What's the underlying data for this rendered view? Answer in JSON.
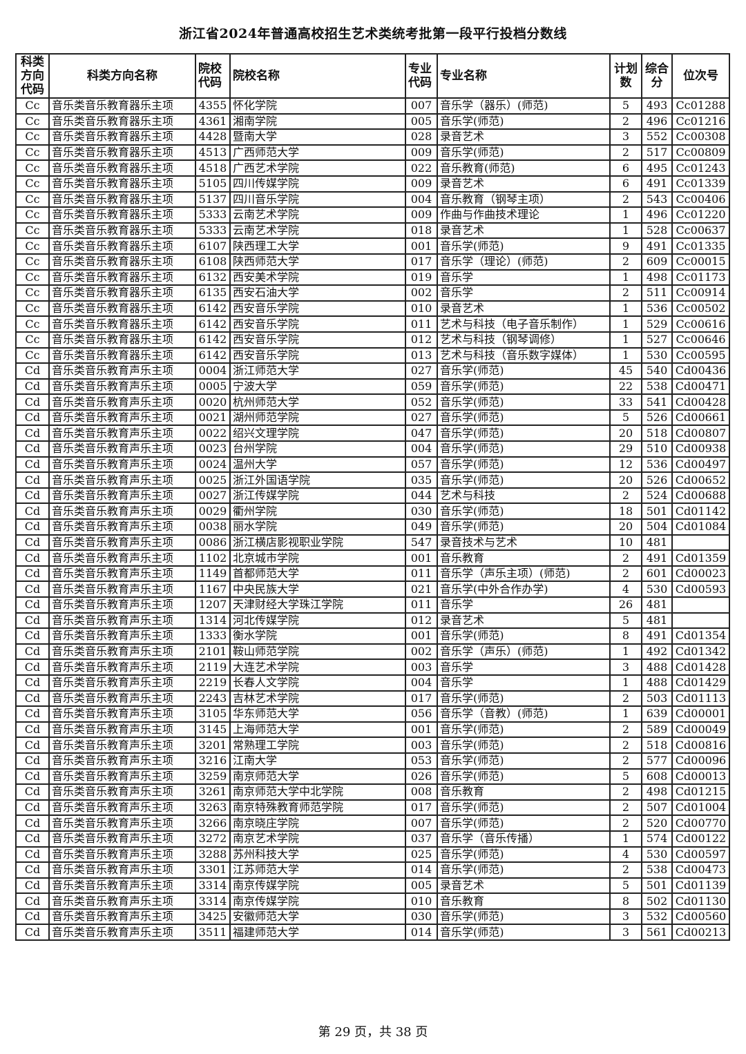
{
  "title": "浙江省2024年普通高校招生艺术类统考批第一段平行投档分数线",
  "headers": [
    "科类方向代码",
    "科类方向名称",
    "院校代码",
    "院校名称",
    "专业代码",
    "专业名称",
    "计划数",
    "综合分",
    "位次号"
  ],
  "rows": [
    [
      "Cc",
      "音乐类音乐教育器乐主项",
      "4355",
      "怀化学院",
      "007",
      "音乐学（器乐）(师范)",
      "5",
      "493",
      "Cc01288"
    ],
    [
      "Cc",
      "音乐类音乐教育器乐主项",
      "4361",
      "湘南学院",
      "005",
      "音乐学(师范)",
      "2",
      "496",
      "Cc01216"
    ],
    [
      "Cc",
      "音乐类音乐教育器乐主项",
      "4428",
      "暨南大学",
      "028",
      "录音艺术",
      "3",
      "552",
      "Cc00308"
    ],
    [
      "Cc",
      "音乐类音乐教育器乐主项",
      "4513",
      "广西师范大学",
      "009",
      "音乐学(师范)",
      "2",
      "517",
      "Cc00809"
    ],
    [
      "Cc",
      "音乐类音乐教育器乐主项",
      "4518",
      "广西艺术学院",
      "022",
      "音乐教育(师范)",
      "6",
      "495",
      "Cc01243"
    ],
    [
      "Cc",
      "音乐类音乐教育器乐主项",
      "5105",
      "四川传媒学院",
      "009",
      "录音艺术",
      "6",
      "491",
      "Cc01339"
    ],
    [
      "Cc",
      "音乐类音乐教育器乐主项",
      "5137",
      "四川音乐学院",
      "004",
      "音乐教育（钢琴主项）",
      "2",
      "543",
      "Cc00406"
    ],
    [
      "Cc",
      "音乐类音乐教育器乐主项",
      "5333",
      "云南艺术学院",
      "009",
      "作曲与作曲技术理论",
      "1",
      "496",
      "Cc01220"
    ],
    [
      "Cc",
      "音乐类音乐教育器乐主项",
      "5333",
      "云南艺术学院",
      "018",
      "录音艺术",
      "1",
      "528",
      "Cc00637"
    ],
    [
      "Cc",
      "音乐类音乐教育器乐主项",
      "6107",
      "陕西理工大学",
      "001",
      "音乐学(师范)",
      "9",
      "491",
      "Cc01335"
    ],
    [
      "Cc",
      "音乐类音乐教育器乐主项",
      "6108",
      "陕西师范大学",
      "017",
      "音乐学（理论）(师范)",
      "2",
      "609",
      "Cc00015"
    ],
    [
      "Cc",
      "音乐类音乐教育器乐主项",
      "6132",
      "西安美术学院",
      "019",
      "音乐学",
      "1",
      "498",
      "Cc01173"
    ],
    [
      "Cc",
      "音乐类音乐教育器乐主项",
      "6135",
      "西安石油大学",
      "002",
      "音乐学",
      "2",
      "511",
      "Cc00914"
    ],
    [
      "Cc",
      "音乐类音乐教育器乐主项",
      "6142",
      "西安音乐学院",
      "010",
      "录音艺术",
      "1",
      "536",
      "Cc00502"
    ],
    [
      "Cc",
      "音乐类音乐教育器乐主项",
      "6142",
      "西安音乐学院",
      "011",
      "艺术与科技（电子音乐制作）",
      "1",
      "529",
      "Cc00616"
    ],
    [
      "Cc",
      "音乐类音乐教育器乐主项",
      "6142",
      "西安音乐学院",
      "012",
      "艺术与科技（钢琴调修）",
      "1",
      "527",
      "Cc00646"
    ],
    [
      "Cc",
      "音乐类音乐教育器乐主项",
      "6142",
      "西安音乐学院",
      "013",
      "艺术与科技（音乐数字媒体）",
      "1",
      "530",
      "Cc00595"
    ],
    [
      "Cd",
      "音乐类音乐教育声乐主项",
      "0004",
      "浙江师范大学",
      "027",
      "音乐学(师范)",
      "45",
      "540",
      "Cd00436"
    ],
    [
      "Cd",
      "音乐类音乐教育声乐主项",
      "0005",
      "宁波大学",
      "059",
      "音乐学(师范)",
      "22",
      "538",
      "Cd00471"
    ],
    [
      "Cd",
      "音乐类音乐教育声乐主项",
      "0020",
      "杭州师范大学",
      "052",
      "音乐学(师范)",
      "33",
      "541",
      "Cd00428"
    ],
    [
      "Cd",
      "音乐类音乐教育声乐主项",
      "0021",
      "湖州师范学院",
      "027",
      "音乐学(师范)",
      "5",
      "526",
      "Cd00661"
    ],
    [
      "Cd",
      "音乐类音乐教育声乐主项",
      "0022",
      "绍兴文理学院",
      "047",
      "音乐学(师范)",
      "20",
      "518",
      "Cd00807"
    ],
    [
      "Cd",
      "音乐类音乐教育声乐主项",
      "0023",
      "台州学院",
      "004",
      "音乐学(师范)",
      "29",
      "510",
      "Cd00938"
    ],
    [
      "Cd",
      "音乐类音乐教育声乐主项",
      "0024",
      "温州大学",
      "057",
      "音乐学(师范)",
      "12",
      "536",
      "Cd00497"
    ],
    [
      "Cd",
      "音乐类音乐教育声乐主项",
      "0025",
      "浙江外国语学院",
      "035",
      "音乐学(师范)",
      "20",
      "526",
      "Cd00652"
    ],
    [
      "Cd",
      "音乐类音乐教育声乐主项",
      "0027",
      "浙江传媒学院",
      "044",
      "艺术与科技",
      "2",
      "524",
      "Cd00688"
    ],
    [
      "Cd",
      "音乐类音乐教育声乐主项",
      "0029",
      "衢州学院",
      "030",
      "音乐学(师范)",
      "18",
      "501",
      "Cd01142"
    ],
    [
      "Cd",
      "音乐类音乐教育声乐主项",
      "0038",
      "丽水学院",
      "049",
      "音乐学(师范)",
      "20",
      "504",
      "Cd01084"
    ],
    [
      "Cd",
      "音乐类音乐教育声乐主项",
      "0086",
      "浙江横店影视职业学院",
      "547",
      "录音技术与艺术",
      "10",
      "481",
      ""
    ],
    [
      "Cd",
      "音乐类音乐教育声乐主项",
      "1102",
      "北京城市学院",
      "001",
      "音乐教育",
      "2",
      "491",
      "Cd01359"
    ],
    [
      "Cd",
      "音乐类音乐教育声乐主项",
      "1149",
      "首都师范大学",
      "011",
      "音乐学（声乐主项）(师范)",
      "2",
      "601",
      "Cd00023"
    ],
    [
      "Cd",
      "音乐类音乐教育声乐主项",
      "1167",
      "中央民族大学",
      "021",
      "音乐学(中外合作办学)",
      "4",
      "530",
      "Cd00593"
    ],
    [
      "Cd",
      "音乐类音乐教育声乐主项",
      "1207",
      "天津财经大学珠江学院",
      "011",
      "音乐学",
      "26",
      "481",
      ""
    ],
    [
      "Cd",
      "音乐类音乐教育声乐主项",
      "1314",
      "河北传媒学院",
      "012",
      "录音艺术",
      "5",
      "481",
      ""
    ],
    [
      "Cd",
      "音乐类音乐教育声乐主项",
      "1333",
      "衡水学院",
      "001",
      "音乐学(师范)",
      "8",
      "491",
      "Cd01354"
    ],
    [
      "Cd",
      "音乐类音乐教育声乐主项",
      "2101",
      "鞍山师范学院",
      "002",
      "音乐学（声乐）(师范)",
      "1",
      "492",
      "Cd01342"
    ],
    [
      "Cd",
      "音乐类音乐教育声乐主项",
      "2119",
      "大连艺术学院",
      "003",
      "音乐学",
      "3",
      "488",
      "Cd01428"
    ],
    [
      "Cd",
      "音乐类音乐教育声乐主项",
      "2219",
      "长春人文学院",
      "004",
      "音乐学",
      "1",
      "488",
      "Cd01429"
    ],
    [
      "Cd",
      "音乐类音乐教育声乐主项",
      "2243",
      "吉林艺术学院",
      "017",
      "音乐学(师范)",
      "2",
      "503",
      "Cd01113"
    ],
    [
      "Cd",
      "音乐类音乐教育声乐主项",
      "3105",
      "华东师范大学",
      "056",
      "音乐学（音教）(师范)",
      "1",
      "639",
      "Cd00001"
    ],
    [
      "Cd",
      "音乐类音乐教育声乐主项",
      "3145",
      "上海师范大学",
      "001",
      "音乐学(师范)",
      "2",
      "589",
      "Cd00049"
    ],
    [
      "Cd",
      "音乐类音乐教育声乐主项",
      "3201",
      "常熟理工学院",
      "003",
      "音乐学(师范)",
      "2",
      "518",
      "Cd00816"
    ],
    [
      "Cd",
      "音乐类音乐教育声乐主项",
      "3216",
      "江南大学",
      "053",
      "音乐学(师范)",
      "2",
      "577",
      "Cd00096"
    ],
    [
      "Cd",
      "音乐类音乐教育声乐主项",
      "3259",
      "南京师范大学",
      "026",
      "音乐学(师范)",
      "5",
      "608",
      "Cd00013"
    ],
    [
      "Cd",
      "音乐类音乐教育声乐主项",
      "3261",
      "南京师范大学中北学院",
      "008",
      "音乐教育",
      "2",
      "498",
      "Cd01215"
    ],
    [
      "Cd",
      "音乐类音乐教育声乐主项",
      "3263",
      "南京特殊教育师范学院",
      "017",
      "音乐学(师范)",
      "2",
      "507",
      "Cd01004"
    ],
    [
      "Cd",
      "音乐类音乐教育声乐主项",
      "3266",
      "南京晓庄学院",
      "007",
      "音乐学(师范)",
      "2",
      "520",
      "Cd00770"
    ],
    [
      "Cd",
      "音乐类音乐教育声乐主项",
      "3272",
      "南京艺术学院",
      "037",
      "音乐学（音乐传播）",
      "1",
      "574",
      "Cd00122"
    ],
    [
      "Cd",
      "音乐类音乐教育声乐主项",
      "3288",
      "苏州科技大学",
      "025",
      "音乐学(师范)",
      "4",
      "530",
      "Cd00597"
    ],
    [
      "Cd",
      "音乐类音乐教育声乐主项",
      "3301",
      "江苏师范大学",
      "014",
      "音乐学(师范)",
      "2",
      "538",
      "Cd00473"
    ],
    [
      "Cd",
      "音乐类音乐教育声乐主项",
      "3314",
      "南京传媒学院",
      "005",
      "录音艺术",
      "5",
      "501",
      "Cd01139"
    ],
    [
      "Cd",
      "音乐类音乐教育声乐主项",
      "3314",
      "南京传媒学院",
      "010",
      "音乐教育",
      "8",
      "502",
      "Cd01130"
    ],
    [
      "Cd",
      "音乐类音乐教育声乐主项",
      "3425",
      "安徽师范大学",
      "030",
      "音乐学(师范)",
      "3",
      "532",
      "Cd00560"
    ],
    [
      "Cd",
      "音乐类音乐教育声乐主项",
      "3511",
      "福建师范大学",
      "014",
      "音乐学(师范)",
      "3",
      "561",
      "Cd00213"
    ]
  ],
  "footer": "第 29 页，共 38 页"
}
